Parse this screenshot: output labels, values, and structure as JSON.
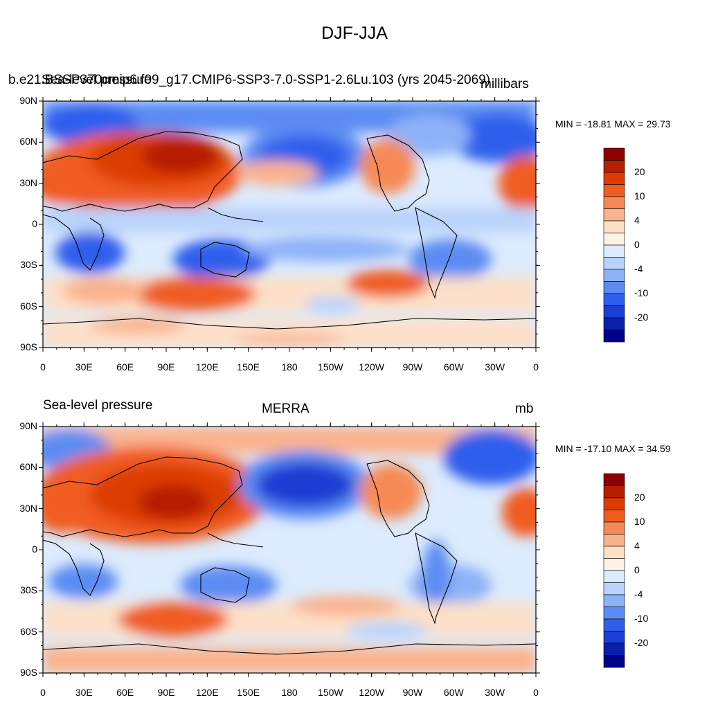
{
  "title": "DJF-JJA",
  "colorbar_levels": [
    "20",
    "10",
    "4",
    "0",
    "-4",
    "-10",
    "-20"
  ],
  "colorbar_colors": [
    "#8b0000",
    "#b51e00",
    "#dc3c00",
    "#f05c20",
    "#f68a55",
    "#fab38d",
    "#fde0c8",
    "#fdf2e6",
    "#dcebfd",
    "#b9d3fc",
    "#8db2f8",
    "#5c8cf3",
    "#2e5fec",
    "#1b3ed4",
    "#0a20aa",
    "#00008b"
  ],
  "panels": [
    {
      "left_label": "Sea-level pressure",
      "center_label": "b.e21.BSSP370cmip6.f09_g17.CMIP6-SSP3-7.0-SSP1-2.6Lu.103 (yrs 2045-2069)",
      "right_label": "millibars",
      "stats": "MIN = -18.81 MAX =  29.73",
      "lat_labels": [
        "90N",
        "60N",
        "30N",
        "0",
        "30S",
        "60S",
        "90S"
      ],
      "lon_labels": [
        "0",
        "30E",
        "60E",
        "90E",
        "120E",
        "150E",
        "180",
        "150W",
        "120W",
        "90W",
        "60W",
        "30W",
        "0"
      ],
      "field": {
        "variable": "DJF minus JJA sea-level pressure",
        "units": "millibars",
        "min": -18.81,
        "max": 29.73
      }
    },
    {
      "left_label": "Sea-level pressure",
      "center_label": "MERRA",
      "right_label": "mb",
      "stats": "MIN = -17.10 MAX =  34.59",
      "lat_labels": [
        "90N",
        "60N",
        "30N",
        "0",
        "30S",
        "60S",
        "90S"
      ],
      "lon_labels": [
        "0",
        "30E",
        "60E",
        "90E",
        "120E",
        "150E",
        "180",
        "150W",
        "120W",
        "90W",
        "60W",
        "30W",
        "0"
      ],
      "field": {
        "variable": "DJF minus JJA sea-level pressure",
        "units": "mb",
        "min": -17.1,
        "max": 34.59
      }
    }
  ]
}
